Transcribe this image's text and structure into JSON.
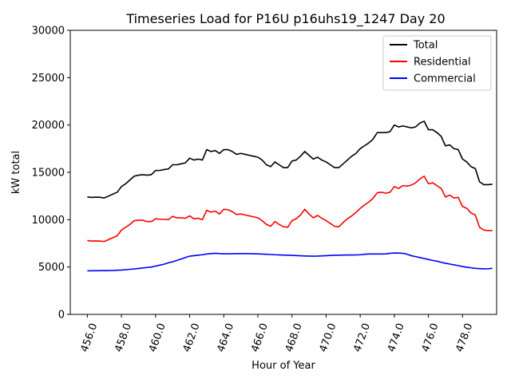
{
  "chart_data": {
    "type": "line",
    "title": "Timeseries Load for P16U p16uhs19_1247  Day 20",
    "xlabel": "Hour of Year",
    "ylabel": "kW total",
    "xlim": [
      455.0,
      480.0
    ],
    "ylim": [
      0,
      30000
    ],
    "xticks": [
      456,
      458,
      460,
      462,
      464,
      466,
      468,
      470,
      472,
      474,
      476,
      478
    ],
    "xtick_labels": [
      "456.0",
      "458.0",
      "460.0",
      "462.0",
      "464.0",
      "466.0",
      "468.0",
      "470.0",
      "472.0",
      "474.0",
      "476.0",
      "478.0"
    ],
    "yticks": [
      0,
      5000,
      10000,
      15000,
      20000,
      25000,
      30000
    ],
    "ytick_labels": [
      "0",
      "5000",
      "10000",
      "15000",
      "20000",
      "25000",
      "30000"
    ],
    "legend_position": "top-right",
    "grid": false,
    "x": [
      456.0,
      456.25,
      456.5,
      456.75,
      457.0,
      457.25,
      457.5,
      457.75,
      458.0,
      458.25,
      458.5,
      458.75,
      459.0,
      459.25,
      459.5,
      459.75,
      460.0,
      460.25,
      460.5,
      460.75,
      461.0,
      461.25,
      461.5,
      461.75,
      462.0,
      462.25,
      462.5,
      462.75,
      463.0,
      463.25,
      463.5,
      463.75,
      464.0,
      464.25,
      464.5,
      464.75,
      465.0,
      465.25,
      465.5,
      465.75,
      466.0,
      466.25,
      466.5,
      466.75,
      467.0,
      467.25,
      467.5,
      467.75,
      468.0,
      468.25,
      468.5,
      468.75,
      469.0,
      469.25,
      469.5,
      469.75,
      470.0,
      470.25,
      470.5,
      470.75,
      471.0,
      471.25,
      471.5,
      471.75,
      472.0,
      472.25,
      472.5,
      472.75,
      473.0,
      473.25,
      473.5,
      473.75,
      474.0,
      474.25,
      474.5,
      474.75,
      475.0,
      475.25,
      475.5,
      475.75,
      476.0,
      476.25,
      476.5,
      476.75,
      477.0,
      477.25,
      477.5,
      477.75,
      478.0,
      478.25,
      478.5,
      478.75,
      479.0,
      479.25,
      479.5,
      479.75
    ],
    "series": [
      {
        "name": "Total",
        "color": "#000000",
        "values": [
          12400,
          12350,
          12380,
          12360,
          12300,
          12500,
          12700,
          12900,
          13500,
          13800,
          14200,
          14600,
          14700,
          14750,
          14700,
          14750,
          15200,
          15200,
          15300,
          15350,
          15800,
          15800,
          15900,
          16000,
          16500,
          16300,
          16400,
          16300,
          17400,
          17200,
          17300,
          17000,
          17400,
          17400,
          17200,
          16900,
          17000,
          16900,
          16800,
          16700,
          16600,
          16300,
          15800,
          15600,
          16100,
          15800,
          15500,
          15500,
          16200,
          16300,
          16700,
          17200,
          16800,
          16400,
          16600,
          16300,
          16100,
          15800,
          15500,
          15500,
          15900,
          16300,
          16700,
          17000,
          17500,
          17800,
          18100,
          18500,
          19200,
          19200,
          19200,
          19300,
          20000,
          19800,
          19900,
          19800,
          19700,
          19800,
          20200,
          20400,
          19500,
          19500,
          19200,
          18800,
          17800,
          17900,
          17500,
          17400,
          16400,
          16100,
          15600,
          15400,
          14000,
          13700,
          13700,
          13750
        ]
      },
      {
        "name": "Residential",
        "color": "#ff0000",
        "values": [
          7800,
          7750,
          7760,
          7740,
          7700,
          7900,
          8100,
          8300,
          8900,
          9200,
          9500,
          9900,
          9950,
          9950,
          9800,
          9800,
          10100,
          10050,
          10050,
          10000,
          10350,
          10200,
          10200,
          10150,
          10400,
          10100,
          10150,
          10000,
          11000,
          10800,
          10900,
          10600,
          11100,
          11050,
          10850,
          10550,
          10600,
          10500,
          10400,
          10300,
          10200,
          9900,
          9500,
          9300,
          9800,
          9500,
          9250,
          9200,
          9900,
          10100,
          10500,
          11100,
          10600,
          10200,
          10450,
          10150,
          9900,
          9600,
          9300,
          9250,
          9700,
          10100,
          10400,
          10750,
          11200,
          11550,
          11850,
          12250,
          12850,
          12900,
          12800,
          12900,
          13500,
          13300,
          13600,
          13550,
          13650,
          13900,
          14300,
          14600,
          13800,
          13900,
          13600,
          13300,
          12400,
          12600,
          12300,
          12350,
          11400,
          11200,
          10700,
          10500,
          9200,
          8900,
          8850,
          8850
        ]
      },
      {
        "name": "Commercial",
        "color": "#0000ff",
        "values": [
          4600,
          4610,
          4610,
          4620,
          4620,
          4630,
          4640,
          4660,
          4680,
          4720,
          4760,
          4800,
          4850,
          4900,
          4950,
          5000,
          5100,
          5200,
          5300,
          5450,
          5550,
          5700,
          5850,
          6000,
          6150,
          6200,
          6250,
          6300,
          6380,
          6420,
          6450,
          6420,
          6400,
          6400,
          6400,
          6410,
          6420,
          6420,
          6410,
          6400,
          6390,
          6370,
          6350,
          6330,
          6300,
          6280,
          6260,
          6250,
          6230,
          6210,
          6190,
          6170,
          6160,
          6150,
          6160,
          6180,
          6200,
          6220,
          6240,
          6250,
          6260,
          6270,
          6270,
          6280,
          6300,
          6350,
          6380,
          6380,
          6380,
          6380,
          6390,
          6450,
          6480,
          6470,
          6450,
          6350,
          6200,
          6100,
          6000,
          5900,
          5800,
          5700,
          5620,
          5500,
          5400,
          5320,
          5230,
          5150,
          5050,
          4980,
          4920,
          4860,
          4830,
          4810,
          4820,
          4860
        ]
      }
    ]
  }
}
